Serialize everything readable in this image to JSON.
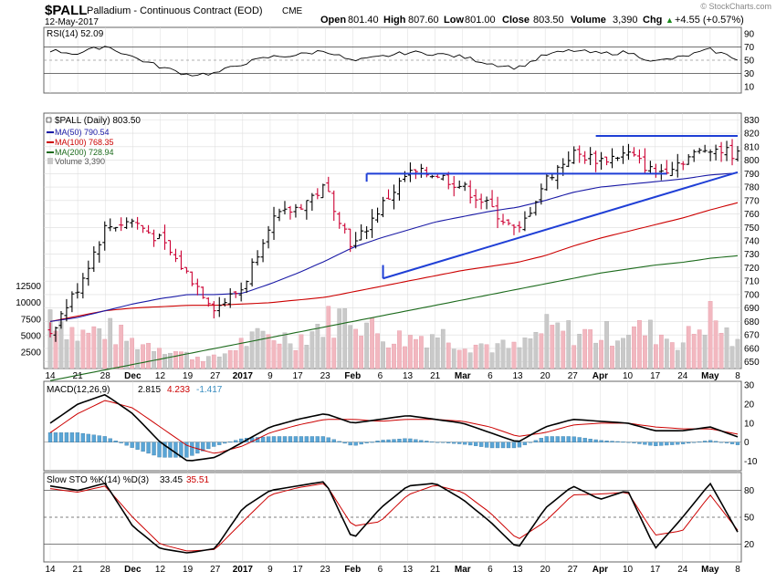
{
  "header": {
    "symbol": "$PALL",
    "name": "Palladium - Continuous Contract (EOD)",
    "exchange": "CME",
    "date": "12-May-2017",
    "watermark": "© StockCharts.com",
    "open_label": "Open",
    "open": "801.40",
    "high_label": "High",
    "high": "807.60",
    "low_label": "Low",
    "low": "801.00",
    "close_label": "Close",
    "close": "803.50",
    "volume_label": "Volume",
    "volume": "3,390",
    "chg_label": "Chg",
    "chg": "+4.55 (+0.57%)",
    "chg_arrow": "▲"
  },
  "colors": {
    "up": "#000000",
    "down": "#cc0033",
    "ma50": "#1a1aa6",
    "ma100": "#cc0000",
    "ma200": "#1d6b1d",
    "trend": "#1f3fd6",
    "grid": "#dcdcdc",
    "vol_up": "#c9c9c9",
    "vol_down": "#f2b8c0",
    "macd_hist": "#5aa5d6",
    "rsi_fill": "#8aa68a"
  },
  "legend": {
    "title": "$PALL (Daily) 803.50",
    "ma50": "MA(50) 790.54",
    "ma100": "MA(100) 768.35",
    "ma200": "MA(200) 728.94",
    "volume": "Volume 3,390"
  },
  "rsi": {
    "label": "RSI(14) 52.09",
    "axis": [
      "90",
      "70",
      "50",
      "30",
      "10"
    ]
  },
  "macd": {
    "label_prefix": "MACD(12,26,9)",
    "v1": "2.815",
    "v2": "4.233",
    "v3": "-1.417",
    "axis": [
      "30",
      "20",
      "10",
      "0",
      "-10"
    ]
  },
  "sto": {
    "label_prefix": "Slow STO %K(14) %D(3)",
    "k": "33.45",
    "d": "35.51",
    "axis": [
      "80",
      "50",
      "20"
    ]
  },
  "price_axis": [
    "830",
    "820",
    "810",
    "800",
    "790",
    "780",
    "770",
    "760",
    "750",
    "740",
    "730",
    "720",
    "710",
    "700",
    "690",
    "680",
    "670",
    "660",
    "650"
  ],
  "volume_axis": [
    "12500",
    "10000",
    "7500",
    "5000",
    "2500"
  ],
  "x_labels": [
    "14",
    "21",
    "28",
    "Dec",
    "12",
    "19",
    "27",
    "2017",
    "9",
    "17",
    "23",
    "Feb",
    "6",
    "13",
    "21",
    "Mar",
    "6",
    "13",
    "20",
    "27",
    "Apr",
    "10",
    "17",
    "24",
    "May",
    "8"
  ],
  "chart_data": {
    "type": "ohlc",
    "title": "$PALL Palladium - Continuous Contract (EOD) Daily",
    "ylim": [
      650,
      835
    ],
    "dates": [
      "14",
      "21",
      "28",
      "Dec",
      "12",
      "19",
      "27",
      "2017",
      "9",
      "17",
      "23",
      "Feb",
      "6",
      "13",
      "21",
      "Mar",
      "6",
      "13",
      "20",
      "27",
      "Apr",
      "10",
      "17",
      "24",
      "May",
      "8"
    ],
    "close": [
      672,
      705,
      750,
      755,
      740,
      715,
      690,
      705,
      755,
      765,
      780,
      735,
      765,
      790,
      790,
      780,
      765,
      745,
      785,
      805,
      800,
      805,
      790,
      800,
      810,
      803.5
    ],
    "ma50": [
      680,
      683,
      688,
      693,
      697,
      700,
      700,
      701,
      708,
      716,
      725,
      735,
      742,
      748,
      754,
      758,
      762,
      765,
      770,
      776,
      780,
      782,
      784,
      786,
      789,
      790.54
    ],
    "ma100": [
      680,
      684,
      688,
      690,
      691,
      692,
      692,
      693,
      694,
      696,
      698,
      702,
      706,
      710,
      714,
      718,
      721,
      724,
      729,
      736,
      742,
      747,
      752,
      757,
      763,
      768.35
    ],
    "ma200": [
      636,
      640,
      644,
      648,
      652,
      656,
      660,
      664,
      668,
      672,
      676,
      680,
      684,
      688,
      692,
      696,
      700,
      704,
      708,
      712,
      716,
      719,
      722,
      724,
      727,
      728.94
    ],
    "volume": [
      9000,
      5000,
      6000,
      4000,
      3500,
      2000,
      1500,
      4000,
      5000,
      4500,
      7000,
      8500,
      5000,
      4500,
      5500,
      4000,
      3500,
      3000,
      6000,
      5500,
      5000,
      6000,
      5500,
      4000,
      8000,
      3390
    ],
    "rsi": [
      65,
      60,
      72,
      55,
      40,
      28,
      30,
      45,
      55,
      58,
      65,
      48,
      55,
      62,
      60,
      55,
      45,
      38,
      58,
      65,
      60,
      62,
      48,
      55,
      66,
      52.09
    ],
    "macd": [
      10,
      20,
      25,
      15,
      0,
      -10,
      -8,
      0,
      8,
      12,
      15,
      10,
      12,
      14,
      12,
      10,
      5,
      0,
      8,
      12,
      11,
      10,
      6,
      6,
      8,
      2.815
    ],
    "macd_signal": [
      5,
      15,
      22,
      18,
      8,
      -2,
      -6,
      -2,
      5,
      9,
      12,
      12,
      11,
      12,
      12,
      11,
      8,
      3,
      5,
      9,
      10,
      10,
      8,
      7,
      7,
      4.233
    ],
    "sto_k": [
      85,
      80,
      88,
      40,
      15,
      10,
      15,
      60,
      80,
      85,
      90,
      25,
      60,
      85,
      88,
      70,
      45,
      15,
      60,
      85,
      70,
      80,
      15,
      50,
      88,
      33.45
    ],
    "sto_d": [
      82,
      78,
      85,
      50,
      20,
      12,
      14,
      45,
      75,
      83,
      88,
      40,
      45,
      75,
      86,
      78,
      55,
      25,
      45,
      75,
      76,
      78,
      30,
      35,
      75,
      35.51
    ],
    "trendlines": [
      {
        "from": [
          "Feb 1",
          712
        ],
        "to": [
          "May 12",
          791
        ]
      },
      {
        "from": [
          "Jan 27",
          790
        ],
        "to": [
          "May 1",
          790
        ]
      },
      {
        "from": [
          "Mar 24",
          818
        ],
        "to": [
          "May 12",
          818
        ]
      }
    ]
  }
}
